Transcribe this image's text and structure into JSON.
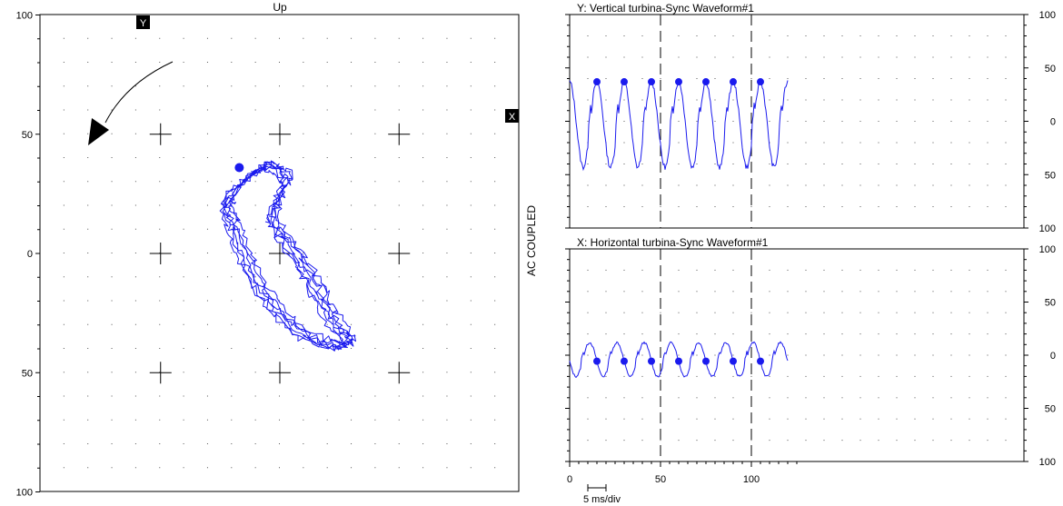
{
  "colors": {
    "trace": "#1a1aee",
    "frame": "#000000",
    "grid_dot": "#555555",
    "background": "#ffffff"
  },
  "icons": {
    "y_marker": "Y-probe-marker",
    "x_marker": "X-probe-marker",
    "rotation_arrow": "curved-rotation-arrow"
  },
  "orbit": {
    "title": "Up",
    "y_marker": "Y",
    "x_marker": "X",
    "coupling": "AC COUPLED",
    "y_ticks": [
      "100",
      "50",
      "0",
      "50",
      "100"
    ]
  },
  "waveform_y": {
    "title": "Y: Vertical turbina-Sync Waveform#1",
    "left_ticks": [
      "100",
      "50",
      "0",
      "50",
      "100"
    ],
    "right_ticks": [
      "100",
      "50",
      "0",
      "50",
      "100"
    ]
  },
  "waveform_x": {
    "title": "X: Horizontal turbina-Sync Waveform#1",
    "left_ticks": [
      "100",
      "50",
      "0",
      "50",
      "100"
    ],
    "right_ticks": [
      "100",
      "50",
      "0",
      "50",
      "100"
    ],
    "x_ticks": [
      "0",
      "50",
      "100"
    ]
  },
  "scale": {
    "label": "5 ms/div"
  },
  "chart_data": [
    {
      "type": "scatter",
      "title": "Up",
      "xlabel": "",
      "ylabel": "AC COUPLED",
      "xlim": [
        -100,
        100
      ],
      "ylim": [
        -100,
        100
      ],
      "grid": true,
      "note": "Orbit plot (Y vs X), closed loop trace",
      "orbit_points": [
        [
          -22,
          22
        ],
        [
          -18,
          28
        ],
        [
          -12,
          33
        ],
        [
          -8,
          36
        ],
        [
          -5,
          37
        ],
        [
          0,
          35
        ],
        [
          3,
          31
        ],
        [
          1,
          26
        ],
        [
          -2,
          20
        ],
        [
          -3,
          14
        ],
        [
          0,
          9
        ],
        [
          4,
          4
        ],
        [
          8,
          -2
        ],
        [
          12,
          -8
        ],
        [
          15,
          -14
        ],
        [
          18,
          -20
        ],
        [
          21,
          -26
        ],
        [
          25,
          -31
        ],
        [
          28,
          -35
        ],
        [
          29,
          -38
        ],
        [
          25,
          -39
        ],
        [
          19,
          -38
        ],
        [
          13,
          -36
        ],
        [
          7,
          -32
        ],
        [
          2,
          -27
        ],
        [
          -3,
          -21
        ],
        [
          -8,
          -14
        ],
        [
          -12,
          -7
        ],
        [
          -15,
          0
        ],
        [
          -18,
          7
        ],
        [
          -20,
          13
        ],
        [
          -22,
          18
        ],
        [
          -22,
          22
        ]
      ],
      "keyphasor_point": [
        -17,
        36
      ]
    },
    {
      "type": "line",
      "title": "Y: Vertical turbina-Sync Waveform#1",
      "xlabel": "",
      "ylabel": "",
      "xlim": [
        0,
        125
      ],
      "ylim": [
        -100,
        100
      ],
      "grid": true,
      "series": [
        {
          "amplitude": 40,
          "offset": -3,
          "period": 15,
          "first_peak_x": 15,
          "start_x": 0,
          "end_x": 120
        }
      ],
      "keyphasor_x": [
        15,
        30,
        45,
        60,
        75,
        90,
        105
      ],
      "vertical_dashed_x": [
        50,
        100
      ]
    },
    {
      "type": "line",
      "title": "X: Horizontal turbina-Sync Waveform#1",
      "xlabel": "",
      "ylabel": "",
      "xlim": [
        0,
        125
      ],
      "ylim": [
        -100,
        100
      ],
      "grid": true,
      "series": [
        {
          "amplitude": 16,
          "offset": -4,
          "period": 15,
          "first_peak_x": 11,
          "start_x": 0,
          "end_x": 120
        }
      ],
      "keyphasor_x": [
        15,
        30,
        45,
        60,
        75,
        90,
        105
      ],
      "vertical_dashed_x": [
        50,
        100
      ],
      "x_ticks": [
        0,
        50,
        100
      ],
      "scale": "5 ms/div"
    }
  ]
}
